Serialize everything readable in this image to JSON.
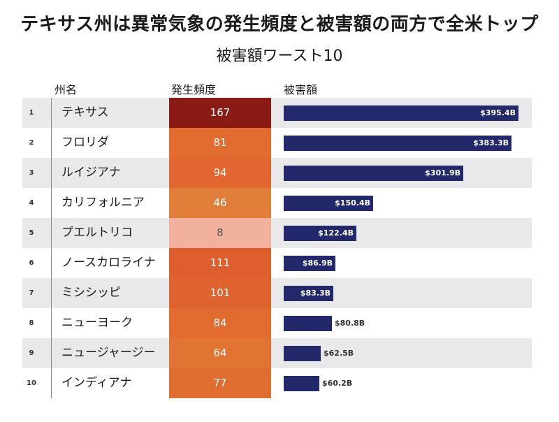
{
  "title": "テキサス州は異常気象の発生頻度と被害額の両方で全米トップ",
  "subtitle": "被害額ワースト10",
  "headers": {
    "state": "州名",
    "frequency": "発生頻度",
    "damage": "被害額"
  },
  "colors": {
    "bar": "#23286a",
    "row_alt": "#e9e9eb",
    "freq_scale_low": "#f2b19c",
    "freq_scale_high": "#8a1a15"
  },
  "chart_data": {
    "type": "table",
    "title": "テキサス州は異常気象の発生頻度と被害額の両方で全米トップ",
    "subtitle": "被害額ワースト10",
    "columns": [
      "州名",
      "発生頻度",
      "被害額"
    ],
    "damage_unit": "$B",
    "damage_max": 395.4,
    "rows": [
      {
        "rank": "1",
        "state": "テキサス",
        "frequency": 167,
        "damage": 395.4,
        "damage_label": "$395.4B"
      },
      {
        "rank": "2",
        "state": "フロリダ",
        "frequency": 81,
        "damage": 383.3,
        "damage_label": "$383.3B"
      },
      {
        "rank": "3",
        "state": "ルイジアナ",
        "frequency": 94,
        "damage": 301.9,
        "damage_label": "$301.9B"
      },
      {
        "rank": "4",
        "state": "カリフォルニア",
        "frequency": 46,
        "damage": 150.4,
        "damage_label": "$150.4B"
      },
      {
        "rank": "5",
        "state": "プエルトリコ",
        "frequency": 8,
        "damage": 122.4,
        "damage_label": "$122.4B"
      },
      {
        "rank": "6",
        "state": "ノースカロライナ",
        "frequency": 111,
        "damage": 86.9,
        "damage_label": "$86.9B"
      },
      {
        "rank": "7",
        "state": "ミシシッピ",
        "frequency": 101,
        "damage": 83.3,
        "damage_label": "$83.3B"
      },
      {
        "rank": "8",
        "state": "ニューヨーク",
        "frequency": 84,
        "damage": 80.8,
        "damage_label": "$80.8B"
      },
      {
        "rank": "9",
        "state": "ニュージャージー",
        "frequency": 64,
        "damage": 62.5,
        "damage_label": "$62.5B"
      },
      {
        "rank": "10",
        "state": "インディアナ",
        "frequency": 77,
        "damage": 60.2,
        "damage_label": "$60.2B"
      }
    ]
  }
}
